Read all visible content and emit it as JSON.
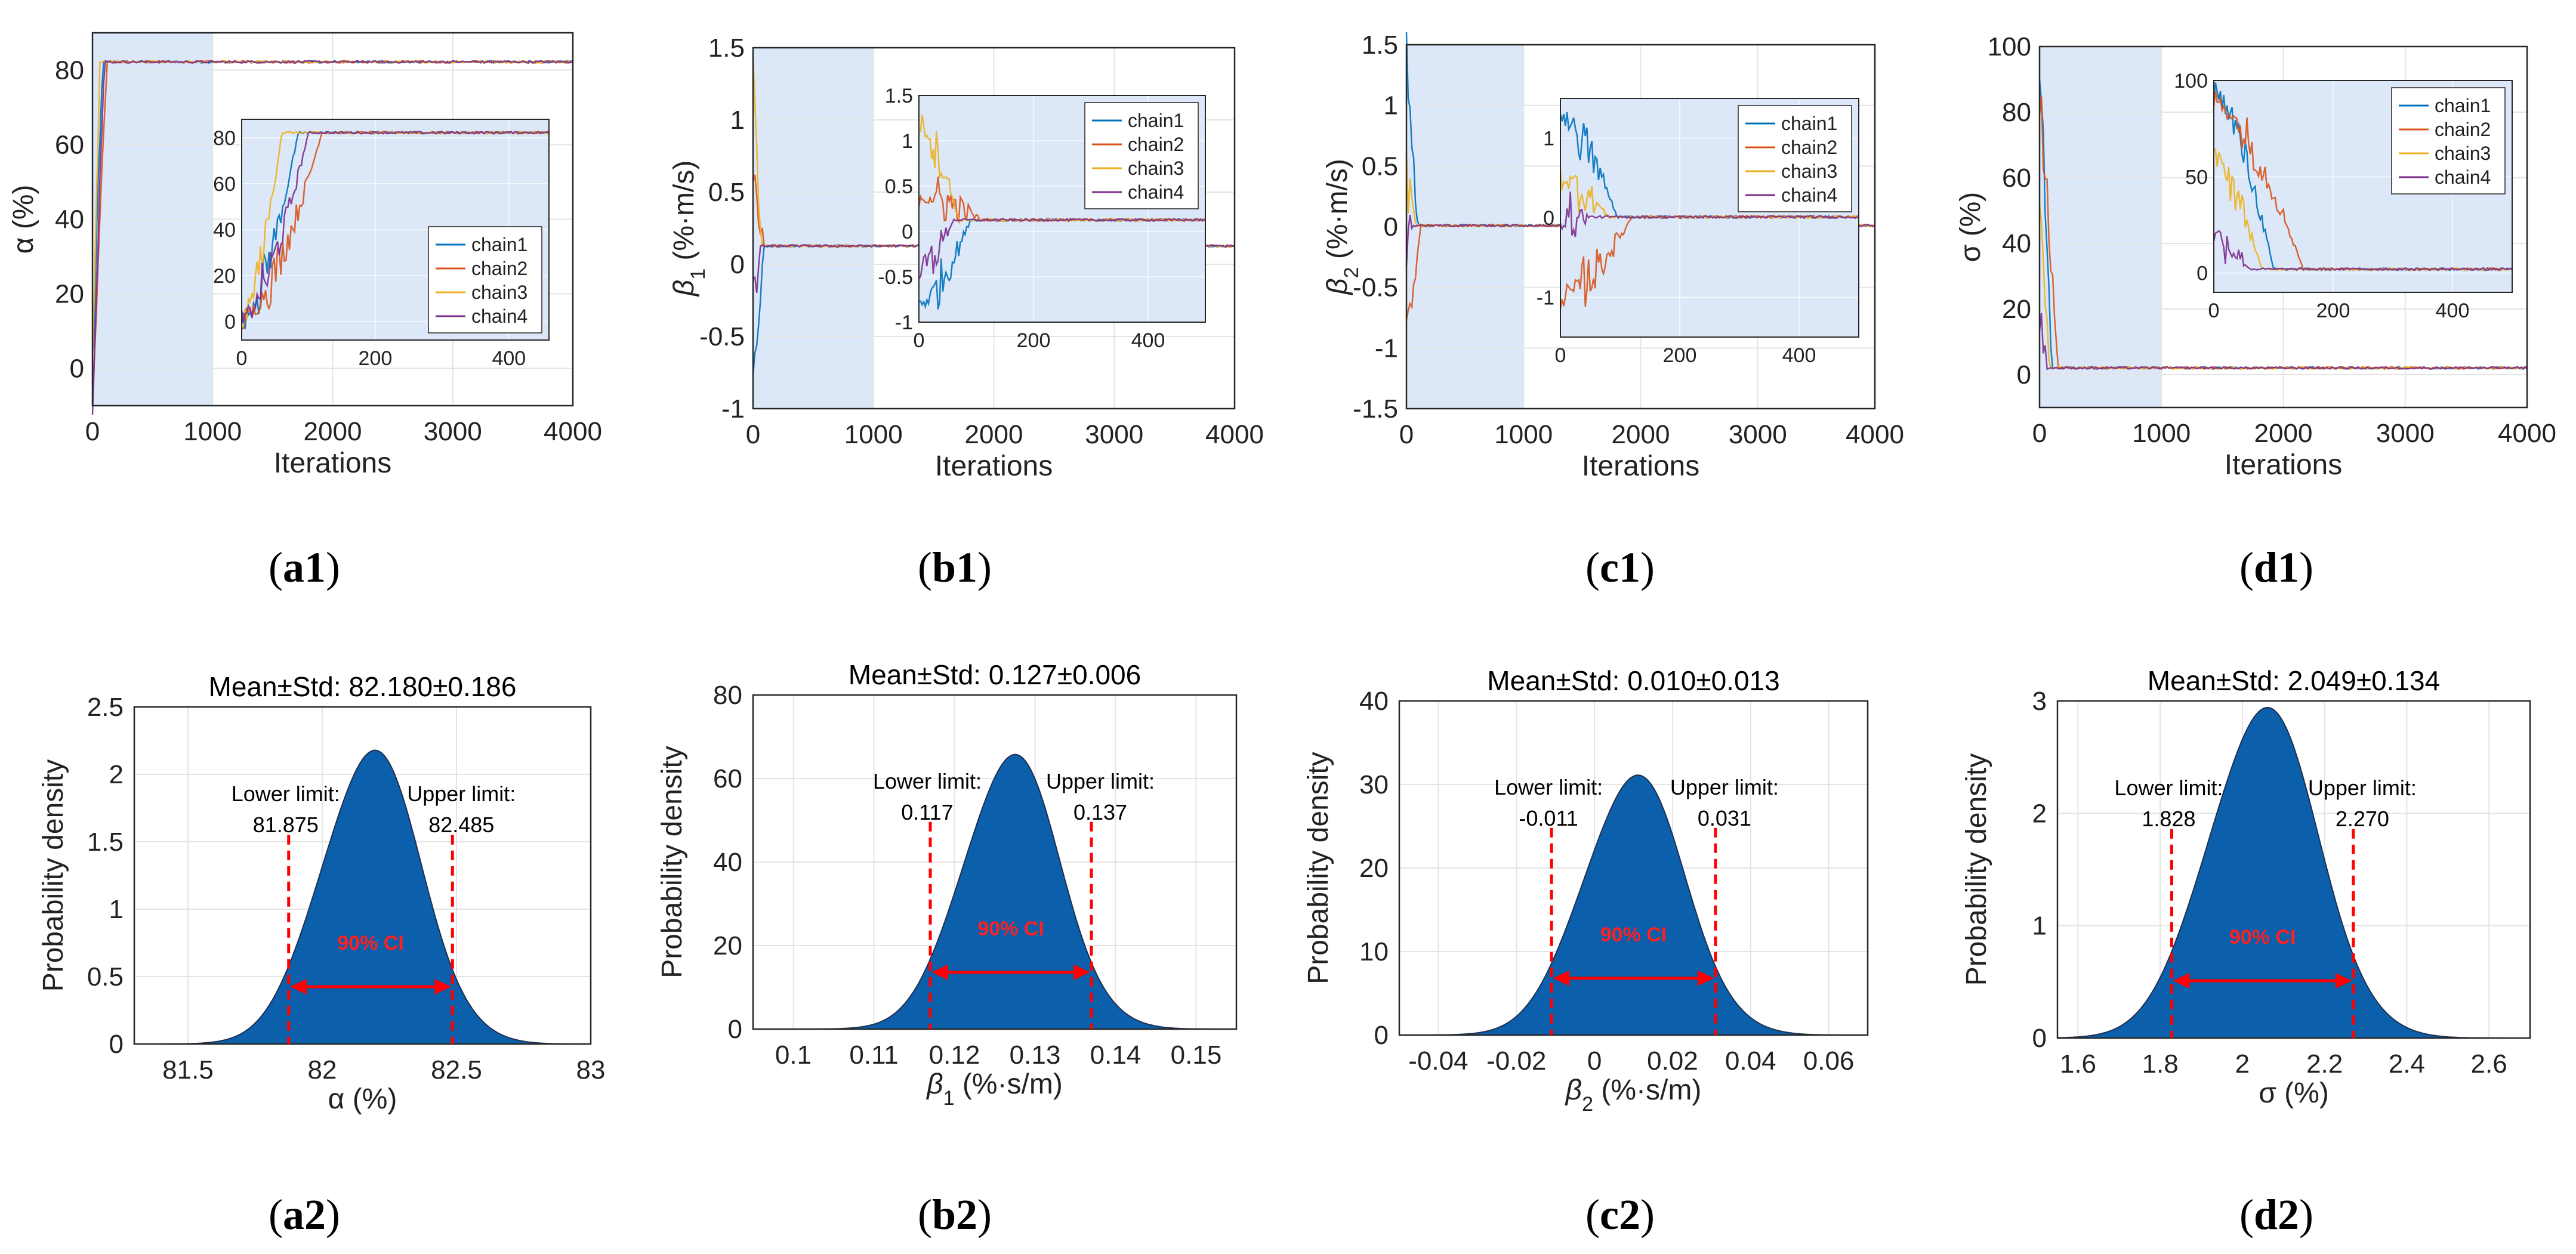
{
  "colors": {
    "chain1": "#0072BD",
    "chain2": "#D95319",
    "chain3": "#EDB120",
    "chain4": "#7E2F8E",
    "burnin": "#dce8f8",
    "density_fill": "#0b5fab",
    "ci": "#ff0000"
  },
  "chart_data": [
    {
      "id": "a1",
      "type": "line",
      "caption": "a1",
      "xlabel": "Iterations",
      "ylabel": "α (%)",
      "xlim": [
        0,
        4000
      ],
      "ylim": [
        -10,
        90
      ],
      "burn_in": [
        0,
        1000
      ],
      "xticks": [
        "0",
        "1000",
        "2000",
        "3000",
        "4000"
      ],
      "yticks": [
        "0",
        "20",
        "40",
        "60",
        "80"
      ],
      "converged": 82.2,
      "start": 0,
      "inset": {
        "xlim": [
          0,
          460
        ],
        "ylim": [
          -8,
          88
        ],
        "xticks": [
          "0",
          "200",
          "400"
        ],
        "yticks": [
          "0",
          "20",
          "40",
          "60",
          "80"
        ],
        "legend": "bottom-right"
      },
      "series": [
        {
          "name": "chain1",
          "start": 0,
          "conv_iter": 85
        },
        {
          "name": "chain2",
          "start": 0,
          "conv_iter": 120
        },
        {
          "name": "chain3",
          "start": 0,
          "conv_iter": 60
        },
        {
          "name": "chain4",
          "start": 0,
          "conv_iter": 100
        }
      ]
    },
    {
      "id": "b1",
      "type": "line",
      "caption": "b1",
      "xlabel": "Iterations",
      "ylabel": "β1 (%·m/s)",
      "xlim": [
        0,
        4000
      ],
      "ylim": [
        -1,
        1.5
      ],
      "burn_in": [
        0,
        1000
      ],
      "xticks": [
        "0",
        "1000",
        "2000",
        "3000",
        "4000"
      ],
      "yticks": [
        "-1",
        "-0.5",
        "0",
        "0.5",
        "1",
        "1.5"
      ],
      "converged": 0.127,
      "inset": {
        "xlim": [
          0,
          500
        ],
        "ylim": [
          -1,
          1.5
        ],
        "xticks": [
          "0",
          "200",
          "400"
        ],
        "yticks": [
          "-1",
          "-0.5",
          "0",
          "0.5",
          "1",
          "1.5"
        ],
        "legend": "top-right"
      },
      "series": [
        {
          "name": "chain1",
          "start": -0.8,
          "conv_iter": 90
        },
        {
          "name": "chain2",
          "start": 0.4,
          "conv_iter": 110
        },
        {
          "name": "chain3",
          "start": 1.2,
          "conv_iter": 70
        },
        {
          "name": "chain4",
          "start": -0.4,
          "conv_iter": 60
        }
      ]
    },
    {
      "id": "c1",
      "type": "line",
      "caption": "c1",
      "xlabel": "Iterations",
      "ylabel": "β2 (%·m/s)",
      "xlim": [
        0,
        4000
      ],
      "ylim": [
        -1.5,
        1.5
      ],
      "burn_in": [
        0,
        1000
      ],
      "xticks": [
        "0",
        "1000",
        "2000",
        "3000",
        "4000"
      ],
      "yticks": [
        "-1.5",
        "-1",
        "-0.5",
        "0",
        "0.5",
        "1",
        "1.5"
      ],
      "converged": 0.01,
      "inset": {
        "xlim": [
          0,
          500
        ],
        "ylim": [
          -1.5,
          1.5
        ],
        "xticks": [
          "0",
          "200",
          "400"
        ],
        "yticks": [
          "-1",
          "0",
          "1"
        ],
        "legend": "top-right"
      },
      "series": [
        {
          "name": "chain1",
          "start": 1.3,
          "conv_iter": 95
        },
        {
          "name": "chain2",
          "start": -1.0,
          "conv_iter": 120
        },
        {
          "name": "chain3",
          "start": 0.5,
          "conv_iter": 80
        },
        {
          "name": "chain4",
          "start": 0.0,
          "conv_iter": 50
        }
      ]
    },
    {
      "id": "d1",
      "type": "line",
      "caption": "d1",
      "xlabel": "Iterations",
      "ylabel": "σ (%)",
      "xlim": [
        0,
        4000
      ],
      "ylim": [
        -10,
        100
      ],
      "burn_in": [
        0,
        1000
      ],
      "xticks": [
        "0",
        "1000",
        "2000",
        "3000",
        "4000"
      ],
      "yticks": [
        "0",
        "20",
        "40",
        "60",
        "80",
        "100"
      ],
      "converged": 2.05,
      "inset": {
        "xlim": [
          0,
          500
        ],
        "ylim": [
          -10,
          100
        ],
        "xticks": [
          "0",
          "200",
          "400"
        ],
        "yticks": [
          "0",
          "50",
          "100"
        ],
        "legend": "top-right"
      },
      "series": [
        {
          "name": "chain1",
          "start": 95,
          "conv_iter": 100
        },
        {
          "name": "chain2",
          "start": 90,
          "conv_iter": 150
        },
        {
          "name": "chain3",
          "start": 60,
          "conv_iter": 80
        },
        {
          "name": "chain4",
          "start": 20,
          "conv_iter": 60
        }
      ]
    },
    {
      "id": "a2",
      "type": "area",
      "caption": "a2",
      "title": "Mean±Std: 82.180±0.186",
      "xlabel": "α (%)",
      "ylabel": "Probability density",
      "xlim": [
        81.3,
        83
      ],
      "ylim": [
        0,
        2.5
      ],
      "xticks": [
        "81.5",
        "82",
        "82.5",
        "83"
      ],
      "yticks": [
        "0",
        "0.5",
        "1",
        "1.5",
        "2",
        "2.5"
      ],
      "mean": 82.18,
      "std": 0.186,
      "peak": 2.17,
      "lower": 81.875,
      "upper": 82.485,
      "lower_label": "Lower limit:",
      "upper_label": "Upper limit:",
      "lower_value": "81.875",
      "upper_value": "82.485",
      "ci_label": "90% CI"
    },
    {
      "id": "b2",
      "type": "area",
      "caption": "b2",
      "title": "Mean±Std: 0.127±0.006",
      "xlabel": "β1 (%·s/m)",
      "ylabel": "Probability density",
      "xlim": [
        0.095,
        0.155
      ],
      "ylim": [
        0,
        80
      ],
      "xticks": [
        "0.1",
        "0.11",
        "0.12",
        "0.13",
        "0.14",
        "0.15"
      ],
      "yticks": [
        "0",
        "20",
        "40",
        "60",
        "80"
      ],
      "mean": 0.127,
      "std": 0.006,
      "peak": 65.5,
      "lower": 0.117,
      "upper": 0.137,
      "lower_label": "Lower limit:",
      "upper_label": "Upper limit:",
      "lower_value": "0.117",
      "upper_value": "0.137",
      "ci_label": "90% CI"
    },
    {
      "id": "c2",
      "type": "area",
      "caption": "c2",
      "title": "Mean±Std: 0.010±0.013",
      "xlabel": "β2 (%·s/m)",
      "ylabel": "Probability density",
      "xlim": [
        -0.05,
        0.07
      ],
      "ylim": [
        0,
        40
      ],
      "xticks": [
        "-0.04",
        "-0.02",
        "0",
        "0.02",
        "0.04",
        "0.06"
      ],
      "yticks": [
        "0",
        "10",
        "20",
        "30",
        "40"
      ],
      "mean": 0.01,
      "std": 0.013,
      "peak": 31,
      "lower": -0.011,
      "upper": 0.031,
      "lower_label": "Lower limit:",
      "upper_label": "Upper limit:",
      "lower_value": "-0.011",
      "upper_value": "0.031",
      "ci_label": "90% CI"
    },
    {
      "id": "d2",
      "type": "area",
      "caption": "d2",
      "title": "Mean±Std: 2.049±0.134",
      "xlabel": "σ (%)",
      "ylabel": "Probability density",
      "xlim": [
        1.55,
        2.7
      ],
      "ylim": [
        0,
        3
      ],
      "xticks": [
        "1.6",
        "1.8",
        "2",
        "2.2",
        "2.4",
        "2.6"
      ],
      "yticks": [
        "0",
        "1",
        "2",
        "3"
      ],
      "mean": 2.049,
      "std": 0.134,
      "peak": 2.93,
      "lower": 1.828,
      "upper": 2.27,
      "lower_label": "Lower limit:",
      "upper_label": "Upper limit:",
      "lower_value": "1.828",
      "upper_value": "2.270",
      "ci_label": "90% CI"
    }
  ]
}
